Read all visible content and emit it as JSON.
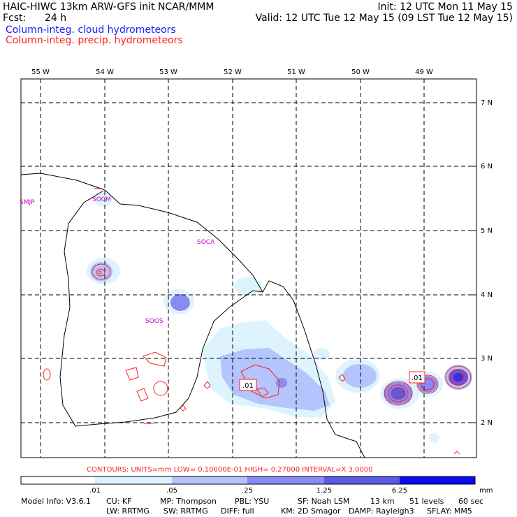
{
  "header": {
    "title_left": "HAIC-HIWC 13km ARW-GFS init   NCAR/MMM",
    "fcst_label": "Fcst:",
    "fcst_value": "24 h",
    "init": "Init: 12 UTC Mon 11 May 15",
    "valid": "Valid: 12 UTC Tue 12 May 15 (09 LST Tue 12 May 15)",
    "legend_cloud": "Column-integ. cloud hydrometeors",
    "legend_precip": "Column-integ. precip. hydrometeors",
    "colors": {
      "cloud": "#1a1aff",
      "precip": "#ff2020"
    }
  },
  "map": {
    "lon_labels": [
      "55 W",
      "54 W",
      "53 W",
      "52 W",
      "51 W",
      "50 W",
      "49 W"
    ],
    "lat_labels": [
      "7 N",
      "6 N",
      "5 N",
      "4 N",
      "3 N",
      "2 N"
    ],
    "stations": [
      "SMJP",
      "SOCM",
      "SOCA",
      "SOOS"
    ],
    "contour_labels": [
      ".01",
      ".01"
    ]
  },
  "contour_info": "CONTOURS:  UNITS=mm  LOW= 0.10000E-01  HIGH= 0.27000     INTERVAL=X  3.0000",
  "colorbar": {
    "tick_labels": [
      ".01",
      ".05",
      ".25",
      "1.25",
      "6.25"
    ],
    "units": "mm",
    "colors": [
      "#ffffff",
      "#ddf4ff",
      "#b4c4fc",
      "#8a8af4",
      "#5a5ae8",
      "#3030f0",
      "#0a0af0"
    ]
  },
  "model_info": {
    "line1": [
      "Model Info: V3.6.1",
      "CU: KF",
      "MP: Thompson",
      "PBL: YSU",
      "SF: Noah LSM",
      "13 km",
      "51 levels",
      "60 sec"
    ],
    "line2": [
      "LW: RRTMG",
      "SW: RRTMG",
      "DIFF: full",
      "KM: 2D Smagor",
      "DAMP: Rayleigh3",
      "SFLAY: MM5"
    ]
  }
}
